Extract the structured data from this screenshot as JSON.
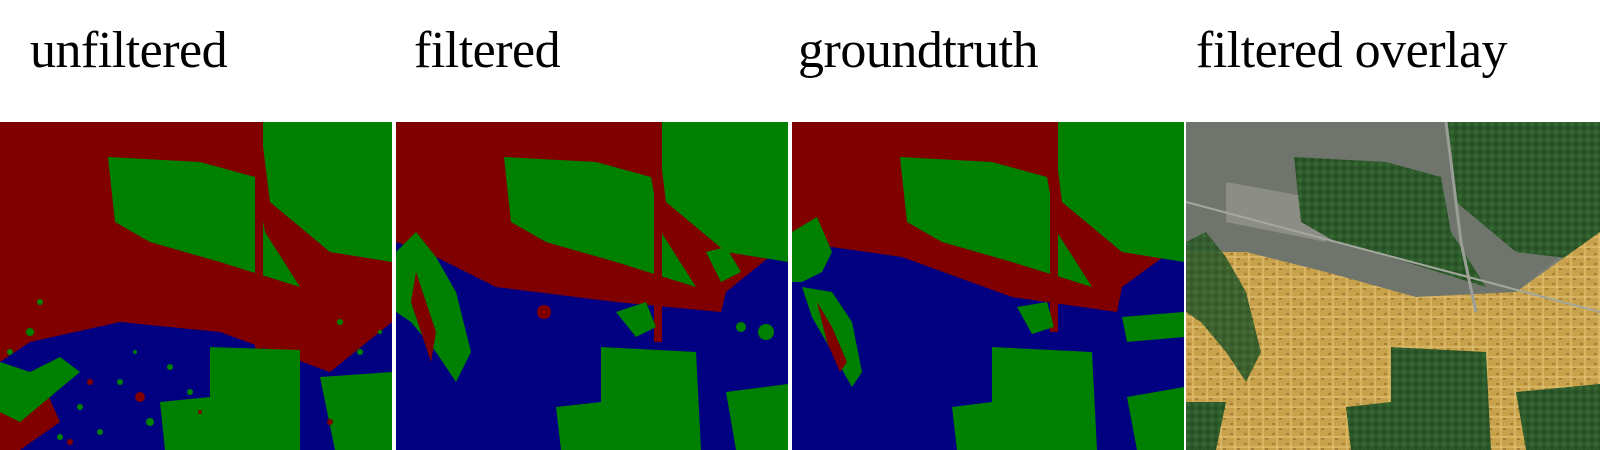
{
  "figure": {
    "panels": [
      {
        "id": "unfiltered",
        "label": "unfiltered"
      },
      {
        "id": "filtered",
        "label": "filtered"
      },
      {
        "id": "groundtruth",
        "label": "groundtruth"
      },
      {
        "id": "overlay",
        "label": "filtered overlay"
      }
    ],
    "class_colors": {
      "red": "#800000",
      "green": "#008000",
      "blue": "#000080"
    },
    "overlay_colors": {
      "urban": "#c8a24a",
      "forest": "#2d5a2a",
      "field": "#7a7f78"
    }
  }
}
